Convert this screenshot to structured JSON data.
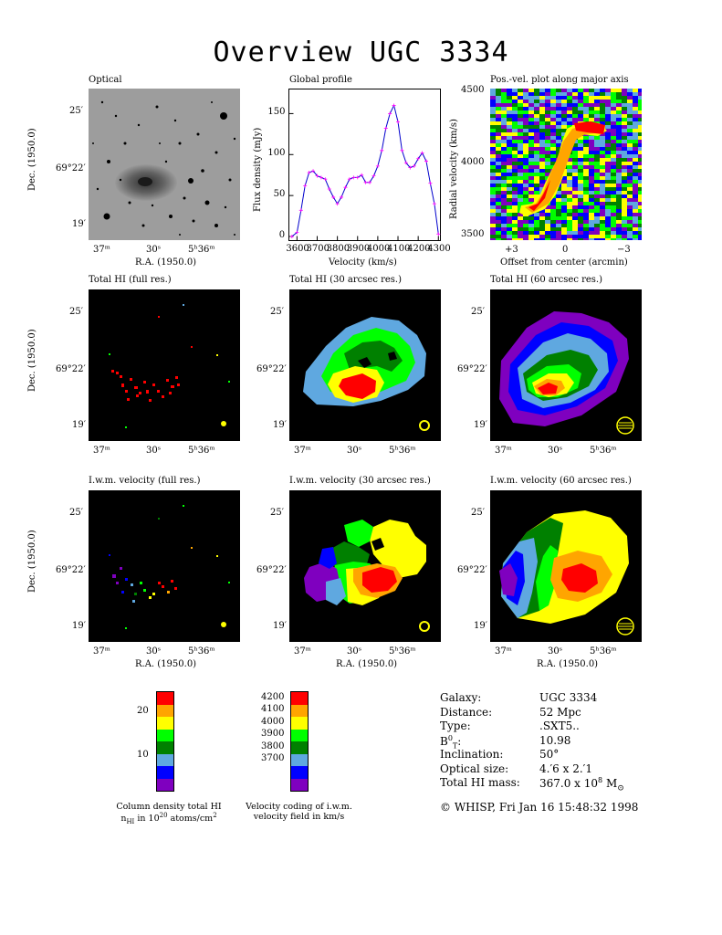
{
  "title": "Overview UGC 3334",
  "panels": {
    "optical": "Optical",
    "global_profile": "Global profile",
    "pv": "Pos.-vel. plot along major axis",
    "hi_full": "Total HI (full res.)",
    "hi_30": "Total HI (30 arcsec res.)",
    "hi_60": "Total HI (60 arcsec res.)",
    "v_full": "I.w.m. velocity (full res.)",
    "v_30": "I.w.m. velocity (30 arcsec res.)",
    "v_60": "I.w.m. velocity (60 arcsec res.)"
  },
  "axes": {
    "dec_label": "Dec. (1950.0)",
    "ra_label": "R.A. (1950.0)",
    "dec_ticks": [
      "25′",
      "69°22′",
      "19′"
    ],
    "ra_ticks": [
      "37ᵐ",
      "30ˢ",
      "5ʰ36ᵐ"
    ],
    "flux_label": "Flux density (mJy)",
    "velocity_label": "Velocity (km/s)",
    "radial_label": "Radial velocity (km/s)",
    "offset_label": "Offset from center (arcmin)",
    "pv_yticks": [
      "4500",
      "4000",
      "3500"
    ],
    "pv_xticks": [
      "+3",
      "0",
      "−3"
    ]
  },
  "chart_data": {
    "type": "line",
    "xlabel": "Velocity (km/s)",
    "ylabel": "Flux density (mJy)",
    "xticks": [
      "3600",
      "3700",
      "3800",
      "3900",
      "4000",
      "4100",
      "4200",
      "4300"
    ],
    "yticks": [
      "0",
      "50",
      "100",
      "150"
    ],
    "xlim": [
      3560,
      4310
    ],
    "ylim": [
      -5,
      180
    ],
    "x": [
      3575,
      3600,
      3620,
      3640,
      3660,
      3680,
      3700,
      3720,
      3740,
      3760,
      3780,
      3800,
      3820,
      3840,
      3860,
      3880,
      3900,
      3920,
      3940,
      3960,
      3980,
      4000,
      4020,
      4040,
      4060,
      4080,
      4100,
      4120,
      4140,
      4160,
      4180,
      4200,
      4220,
      4240,
      4260,
      4280,
      4300
    ],
    "y": [
      0,
      5,
      32,
      62,
      78,
      80,
      74,
      72,
      70,
      58,
      48,
      40,
      48,
      60,
      70,
      72,
      72,
      75,
      66,
      66,
      74,
      86,
      105,
      132,
      150,
      160,
      140,
      105,
      90,
      84,
      86,
      95,
      102,
      92,
      65,
      40,
      3
    ]
  },
  "colorbars": {
    "column_density": {
      "ticks": [
        "20",
        "10"
      ],
      "colors": [
        "#ff0000",
        "#ffa500",
        "#ffff00",
        "#00ff00",
        "#008000",
        "#5fa8e0",
        "#0000ff",
        "#7f00bf"
      ],
      "caption_line1": "Column density total HI",
      "caption_line2": "n",
      "caption_sub": "HI",
      "caption_mid": " in 10",
      "caption_sup": "20",
      "caption_end": " atoms/cm",
      "caption_sup2": "2"
    },
    "velocity": {
      "ticks": [
        "4200",
        "4100",
        "4000",
        "3900",
        "3800",
        "3700"
      ],
      "colors": [
        "#ff0000",
        "#ffa500",
        "#ffff00",
        "#00ff00",
        "#008000",
        "#5fa8e0",
        "#0000ff",
        "#7f00bf"
      ],
      "caption_line1": "Velocity coding of i.w.m.",
      "caption_line2": "velocity field in km/s"
    }
  },
  "galaxy_info": {
    "rows": [
      {
        "label": "Galaxy:",
        "value": "UGC 3334"
      },
      {
        "label": "Distance:",
        "value": "52 Mpc"
      },
      {
        "label": "Type:",
        "value": ".SXT5.."
      },
      {
        "label": "B",
        "label_sup": "0",
        "label_sub": "T",
        "label_end": ":",
        "value": "10.98"
      },
      {
        "label": "Inclination:",
        "value": "50°"
      },
      {
        "label": "Optical size:",
        "value": "4.′6 x 2.′1"
      },
      {
        "label": "Total HI mass:",
        "value": "367.0 x 10",
        "value_sup": "8",
        "value_end": " M",
        "value_sub": "⊙"
      }
    ],
    "footer": "© WHISP, Fri Jan 16 15:48:32 1998"
  },
  "colors": {
    "background": "#ffffff",
    "map_background": "#000000",
    "profile_line": "#0000cc",
    "profile_points": "#ff00ff",
    "beam": "#ffff00"
  }
}
